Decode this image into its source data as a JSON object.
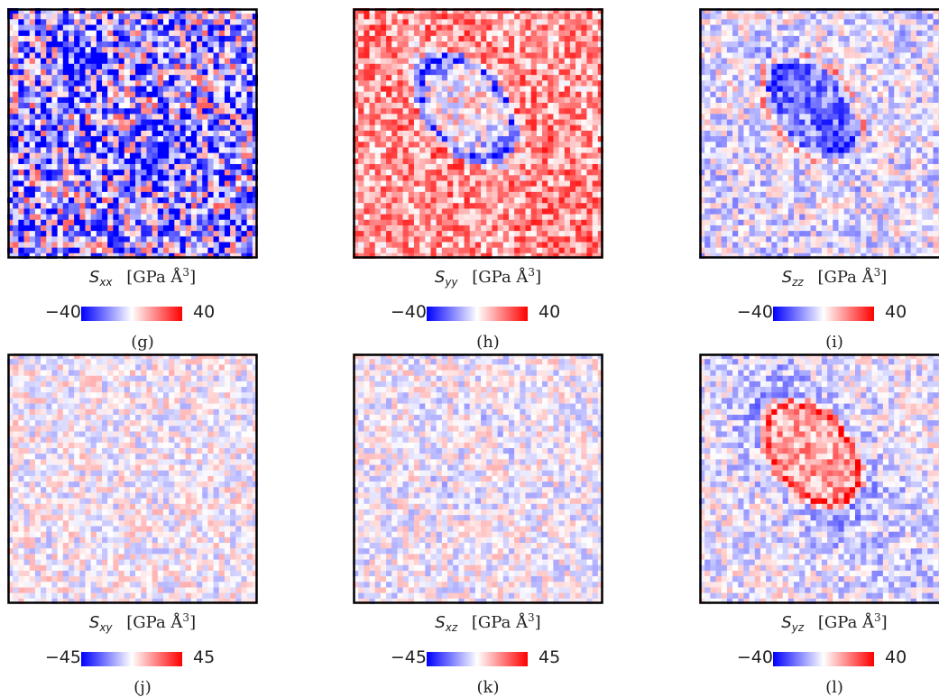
{
  "colors": {
    "negative": "#0000ff",
    "zero": "#ffffff",
    "positive": "#ff0000"
  },
  "panels": [
    {
      "id": "g",
      "label": "(g)",
      "symbol": "S",
      "sub": "xx",
      "unit": "[GPa Å",
      "unit_exp": "3",
      "unit_close": "]",
      "cmin": "−40",
      "cmax": "40",
      "field": {
        "base": -0.3,
        "noise": 0.95,
        "ellipse": 0.05,
        "boundary": -0.5,
        "lobe_a": -0.45,
        "lobe_b": -0.45
      }
    },
    {
      "id": "h",
      "label": "(h)",
      "symbol": "S",
      "sub": "yy",
      "unit": "[GPa Å",
      "unit_exp": "3",
      "unit_close": "]",
      "cmin": "−40",
      "cmax": "40",
      "field": {
        "base": 0.38,
        "noise": 0.45,
        "ellipse": -0.3,
        "boundary": -0.7,
        "lobe_a": -0.5,
        "lobe_b": -0.5,
        "side": 0.25
      }
    },
    {
      "id": "i",
      "label": "(i)",
      "symbol": "S",
      "sub": "zz",
      "unit": "[GPa Å",
      "unit_exp": "3",
      "unit_close": "]",
      "cmin": "−40",
      "cmax": "40",
      "field": {
        "base": -0.12,
        "noise": 0.4,
        "ellipse": -0.35,
        "boundary": 0.45,
        "lobe_a": -0.45,
        "lobe_b": -0.45,
        "side": 0.2
      }
    },
    {
      "id": "j",
      "label": "(j)",
      "symbol": "S",
      "sub": "xy",
      "unit": "[GPa Å",
      "unit_exp": "3",
      "unit_close": "]",
      "cmin": "−45",
      "cmax": "45",
      "field": {
        "base": 0.0,
        "noise": 0.32,
        "ellipse": 0.0,
        "boundary": 0.0,
        "lobe_a": 0.0,
        "lobe_b": 0.0
      }
    },
    {
      "id": "k",
      "label": "(k)",
      "symbol": "S",
      "sub": "xz",
      "unit": "[GPa Å",
      "unit_exp": "3",
      "unit_close": "]",
      "cmin": "−45",
      "cmax": "45",
      "field": {
        "base": -0.02,
        "noise": 0.32,
        "ellipse": 0.0,
        "boundary": -0.08,
        "lobe_a": 0.0,
        "lobe_b": 0.0
      }
    },
    {
      "id": "l",
      "label": "(l)",
      "symbol": "S",
      "sub": "yz",
      "unit": "[GPa Å",
      "unit_exp": "3",
      "unit_close": "]",
      "cmin": "−40",
      "cmax": "40",
      "field": {
        "base": -0.05,
        "noise": 0.35,
        "ellipse": 0.42,
        "boundary": 0.5,
        "lobe_a": 0.0,
        "lobe_b": 0.0,
        "side": -0.3
      }
    }
  ]
}
